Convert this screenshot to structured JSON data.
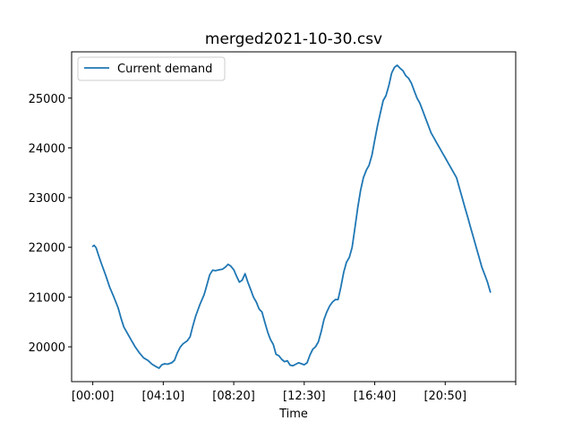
{
  "chart_data": {
    "type": "line",
    "title": "merged2021-10-30.csv",
    "xlabel": "Time",
    "ylabel": "",
    "x_tick_labels": [
      "[00:00]",
      "[04:10]",
      "[08:20]",
      "[12:30]",
      "[16:40]",
      "[20:50]",
      ""
    ],
    "x_tick_values": [
      0,
      250,
      500,
      750,
      1000,
      1250,
      1500
    ],
    "xlim": [
      -75,
      1500
    ],
    "ylim": [
      19300,
      25930
    ],
    "y_ticks": [
      20000,
      21000,
      22000,
      23000,
      24000,
      25000
    ],
    "legend_position": "upper-left",
    "grid": false,
    "series": [
      {
        "name": "Current demand",
        "color": "#1f77b4",
        "points": [
          [
            0,
            22020
          ],
          [
            5,
            22040
          ],
          [
            12,
            21990
          ],
          [
            20,
            21850
          ],
          [
            30,
            21680
          ],
          [
            45,
            21450
          ],
          [
            60,
            21200
          ],
          [
            75,
            21000
          ],
          [
            90,
            20780
          ],
          [
            100,
            20580
          ],
          [
            110,
            20400
          ],
          [
            120,
            20300
          ],
          [
            135,
            20150
          ],
          [
            150,
            20000
          ],
          [
            165,
            19880
          ],
          [
            180,
            19780
          ],
          [
            195,
            19730
          ],
          [
            210,
            19650
          ],
          [
            225,
            19600
          ],
          [
            235,
            19570
          ],
          [
            245,
            19640
          ],
          [
            255,
            19660
          ],
          [
            265,
            19650
          ],
          [
            280,
            19680
          ],
          [
            290,
            19730
          ],
          [
            300,
            19880
          ],
          [
            310,
            19990
          ],
          [
            320,
            20060
          ],
          [
            335,
            20120
          ],
          [
            345,
            20200
          ],
          [
            355,
            20420
          ],
          [
            365,
            20620
          ],
          [
            380,
            20850
          ],
          [
            395,
            21050
          ],
          [
            405,
            21250
          ],
          [
            415,
            21450
          ],
          [
            425,
            21540
          ],
          [
            435,
            21530
          ],
          [
            450,
            21550
          ],
          [
            460,
            21560
          ],
          [
            470,
            21600
          ],
          [
            480,
            21660
          ],
          [
            490,
            21620
          ],
          [
            500,
            21550
          ],
          [
            510,
            21420
          ],
          [
            520,
            21300
          ],
          [
            530,
            21340
          ],
          [
            540,
            21470
          ],
          [
            550,
            21300
          ],
          [
            560,
            21150
          ],
          [
            570,
            21000
          ],
          [
            580,
            20900
          ],
          [
            590,
            20760
          ],
          [
            600,
            20700
          ],
          [
            610,
            20500
          ],
          [
            620,
            20300
          ],
          [
            630,
            20150
          ],
          [
            640,
            20050
          ],
          [
            650,
            19850
          ],
          [
            660,
            19820
          ],
          [
            670,
            19750
          ],
          [
            680,
            19700
          ],
          [
            690,
            19720
          ],
          [
            700,
            19630
          ],
          [
            710,
            19620
          ],
          [
            720,
            19650
          ],
          [
            730,
            19680
          ],
          [
            740,
            19660
          ],
          [
            750,
            19640
          ],
          [
            760,
            19680
          ],
          [
            770,
            19830
          ],
          [
            780,
            19950
          ],
          [
            790,
            20000
          ],
          [
            800,
            20100
          ],
          [
            810,
            20300
          ],
          [
            820,
            20550
          ],
          [
            830,
            20700
          ],
          [
            840,
            20820
          ],
          [
            850,
            20900
          ],
          [
            860,
            20950
          ],
          [
            870,
            20950
          ],
          [
            880,
            21200
          ],
          [
            890,
            21500
          ],
          [
            900,
            21700
          ],
          [
            910,
            21800
          ],
          [
            920,
            22000
          ],
          [
            930,
            22400
          ],
          [
            940,
            22800
          ],
          [
            950,
            23150
          ],
          [
            960,
            23400
          ],
          [
            970,
            23550
          ],
          [
            980,
            23650
          ],
          [
            990,
            23850
          ],
          [
            1000,
            24150
          ],
          [
            1010,
            24450
          ],
          [
            1020,
            24700
          ],
          [
            1030,
            24950
          ],
          [
            1040,
            25050
          ],
          [
            1050,
            25250
          ],
          [
            1060,
            25500
          ],
          [
            1070,
            25620
          ],
          [
            1080,
            25660
          ],
          [
            1090,
            25600
          ],
          [
            1100,
            25550
          ],
          [
            1110,
            25450
          ],
          [
            1120,
            25400
          ],
          [
            1130,
            25300
          ],
          [
            1140,
            25150
          ],
          [
            1150,
            25000
          ],
          [
            1160,
            24900
          ],
          [
            1170,
            24750
          ],
          [
            1180,
            24600
          ],
          [
            1190,
            24450
          ],
          [
            1200,
            24300
          ],
          [
            1210,
            24200
          ],
          [
            1220,
            24100
          ],
          [
            1230,
            24000
          ],
          [
            1240,
            23900
          ],
          [
            1250,
            23800
          ],
          [
            1260,
            23700
          ],
          [
            1270,
            23600
          ],
          [
            1280,
            23500
          ],
          [
            1290,
            23400
          ],
          [
            1300,
            23200
          ],
          [
            1310,
            23000
          ],
          [
            1320,
            22800
          ],
          [
            1330,
            22600
          ],
          [
            1340,
            22400
          ],
          [
            1350,
            22200
          ],
          [
            1360,
            22000
          ],
          [
            1370,
            21800
          ],
          [
            1380,
            21600
          ],
          [
            1390,
            21450
          ],
          [
            1400,
            21300
          ],
          [
            1410,
            21100
          ]
        ]
      }
    ]
  }
}
